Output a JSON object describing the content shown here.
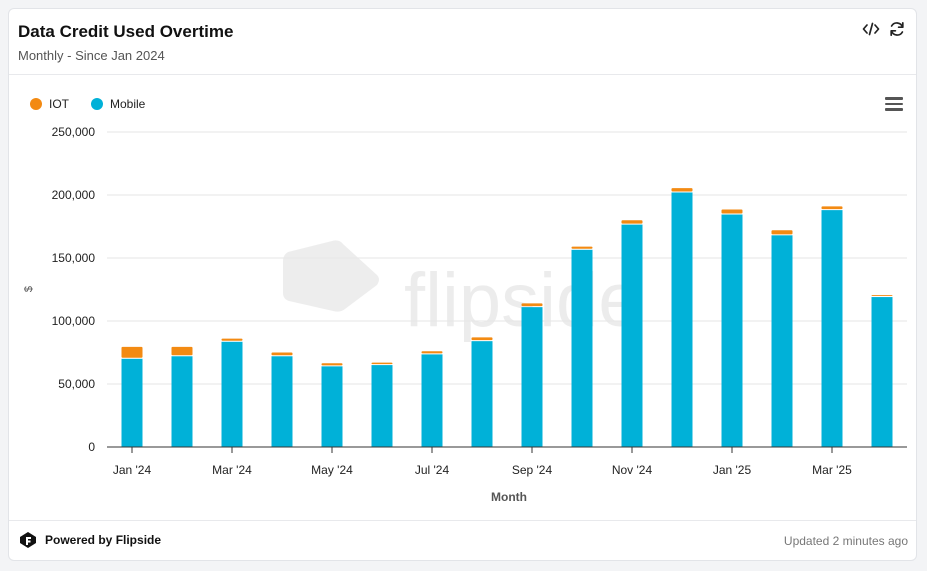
{
  "header": {
    "title": "Data Credit Used Overtime",
    "subtitle": "Monthly - Since Jan 2024"
  },
  "icons": {
    "code": "code-icon",
    "refresh": "refresh-icon",
    "menu": "hamburger-menu-icon",
    "logo": "flipside-logo-icon"
  },
  "watermark": "flipside",
  "footer": {
    "powered_by": "Powered by Flipside",
    "updated": "Updated 2 minutes ago"
  },
  "colors": {
    "iot": "#f38a12",
    "mobile": "#00b1d8",
    "grid": "#e6e6e6"
  },
  "chart_data": {
    "type": "bar",
    "stacked": true,
    "categories": [
      "Jan '24",
      "Feb '24",
      "Mar '24",
      "Apr '24",
      "May '24",
      "Jun '24",
      "Jul '24",
      "Aug '24",
      "Sep '24",
      "Oct '24",
      "Nov '24",
      "Dec '24",
      "Jan '25",
      "Feb '25",
      "Mar '25",
      "Apr '25"
    ],
    "x_tick_labels": [
      "Jan '24",
      "Mar '24",
      "May '24",
      "Jul '24",
      "Sep '24",
      "Nov '24",
      "Jan '25",
      "Mar '25"
    ],
    "series": [
      {
        "name": "Mobile",
        "color": "#00b1d8",
        "values": [
          70000,
          72000,
          83500,
          72000,
          64000,
          65000,
          73500,
          84000,
          111000,
          156500,
          176500,
          202000,
          184500,
          168000,
          188000,
          119000
        ]
      },
      {
        "name": "IOT",
        "color": "#f38a12",
        "values": [
          9500,
          7500,
          2500,
          3000,
          2500,
          2000,
          2500,
          3000,
          3000,
          2500,
          3500,
          3500,
          4000,
          4000,
          3000,
          1500
        ]
      }
    ],
    "legend": [
      "IOT",
      "Mobile"
    ],
    "legend_position": "top-left",
    "xlabel": "Month",
    "ylabel": "$",
    "y_tick_labels": [
      "0",
      "50,000",
      "100,000",
      "150,000",
      "200,000",
      "250,000"
    ],
    "ylim": [
      0,
      250000
    ],
    "grid": true
  }
}
